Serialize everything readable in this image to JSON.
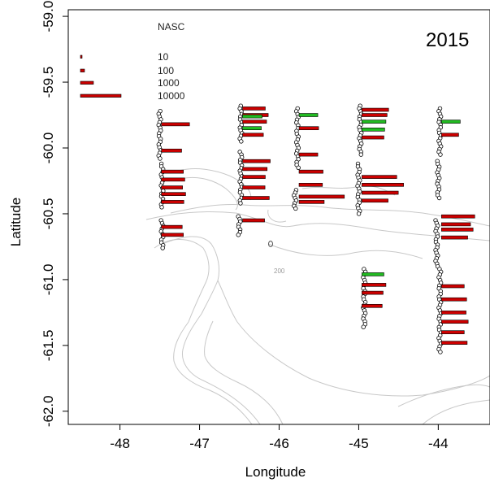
{
  "chart_data": {
    "type": "scatter",
    "title": "2015",
    "xlabel": "Longitude",
    "ylabel": "Latitude",
    "xlim": [
      -48.65,
      -43.35
    ],
    "ylim": [
      -62.1,
      -58.95
    ],
    "x_ticks": [
      -48,
      -47,
      -46,
      -45,
      -44
    ],
    "y_ticks": [
      -59.0,
      -59.5,
      -60.0,
      -60.5,
      -61.0,
      -61.5,
      -62.0
    ],
    "x_tick_labels": [
      "-48",
      "-47",
      "-46",
      "-45",
      "-44"
    ],
    "y_tick_labels": [
      "-59.0",
      "-59.5",
      "-60.0",
      "-60.5",
      "-61.0",
      "-61.5",
      "-62.0"
    ],
    "grid": false,
    "contour_label": "200",
    "legend": {
      "title": "NASC",
      "position": "top-left",
      "entries": [
        {
          "label": "10",
          "value": 10
        },
        {
          "label": "100",
          "value": 100
        },
        {
          "label": "1000",
          "value": 1000
        },
        {
          "label": "10000",
          "value": 10000
        }
      ]
    },
    "colors": {
      "high": "#cc0000",
      "low": "#22bb22",
      "point_outline": "#000000",
      "contour": "#c8c8c8",
      "frame": "#000000"
    },
    "transects": [
      {
        "name": "-47.5",
        "segments": [
          {
            "lat_start": -59.72,
            "lat_end": -60.08,
            "lon": -47.5
          },
          {
            "lat_start": -60.12,
            "lat_end": -60.45,
            "lon": -47.47
          },
          {
            "lat_start": -60.55,
            "lat_end": -60.76,
            "lon": -47.47
          }
        ],
        "bars": [
          {
            "lat": -59.82,
            "value": 8000,
            "group": "high"
          },
          {
            "lat": -60.02,
            "value": 1500,
            "group": "high"
          },
          {
            "lat": -60.18,
            "value": 2500,
            "group": "high"
          },
          {
            "lat": -60.24,
            "value": 3500,
            "group": "high"
          },
          {
            "lat": -60.3,
            "value": 2000,
            "group": "high"
          },
          {
            "lat": -60.35,
            "value": 4200,
            "group": "high"
          },
          {
            "lat": -60.41,
            "value": 2800,
            "group": "high"
          },
          {
            "lat": -60.6,
            "value": 1800,
            "group": "high"
          },
          {
            "lat": -60.66,
            "value": 2500,
            "group": "high"
          }
        ]
      },
      {
        "name": "-46.5",
        "segments": [
          {
            "lat_start": -59.68,
            "lat_end": -59.95,
            "lon": -46.48
          },
          {
            "lat_start": -60.03,
            "lat_end": -60.42,
            "lon": -46.48
          },
          {
            "lat_start": -60.52,
            "lat_end": -60.66,
            "lon": -46.5
          }
        ],
        "bars": [
          {
            "lat": -59.7,
            "value": 3000,
            "group": "high"
          },
          {
            "lat": -59.75,
            "value": 5500,
            "group": "high"
          },
          {
            "lat": -59.8,
            "value": 4000,
            "group": "high"
          },
          {
            "lat": -59.76,
            "value": 1200,
            "group": "low"
          },
          {
            "lat": -59.85,
            "value": 900,
            "group": "low"
          },
          {
            "lat": -59.9,
            "value": 1800,
            "group": "high"
          },
          {
            "lat": -60.1,
            "value": 7500,
            "group": "high"
          },
          {
            "lat": -60.16,
            "value": 4500,
            "group": "high"
          },
          {
            "lat": -60.22,
            "value": 3000,
            "group": "high"
          },
          {
            "lat": -60.3,
            "value": 2800,
            "group": "high"
          },
          {
            "lat": -60.38,
            "value": 6500,
            "group": "high"
          },
          {
            "lat": -60.55,
            "value": 2500,
            "group": "high"
          }
        ]
      },
      {
        "name": "-45.8",
        "segments": [
          {
            "lat_start": -59.7,
            "lat_end": -60.15,
            "lon": -45.77
          },
          {
            "lat_start": -60.32,
            "lat_end": -60.46,
            "lon": -45.8
          }
        ],
        "bars": [
          {
            "lat": -59.75,
            "value": 900,
            "group": "low"
          },
          {
            "lat": -59.85,
            "value": 1200,
            "group": "high"
          },
          {
            "lat": -60.05,
            "value": 900,
            "group": "high"
          },
          {
            "lat": -60.18,
            "value": 4000,
            "group": "high"
          },
          {
            "lat": -60.28,
            "value": 3500,
            "group": "high"
          },
          {
            "lat": -60.37,
            "value": 30000,
            "group": "high"
          },
          {
            "lat": -60.41,
            "value": 5000,
            "group": "high"
          }
        ]
      },
      {
        "name": "-45.0",
        "segments": [
          {
            "lat_start": -59.68,
            "lat_end": -60.05,
            "lon": -44.98
          },
          {
            "lat_start": -60.12,
            "lat_end": -60.5,
            "lon": -45.0
          },
          {
            "lat_start": -60.92,
            "lat_end": -61.36,
            "lon": -44.93
          }
        ],
        "bars": [
          {
            "lat": -59.71,
            "value": 6500,
            "group": "high"
          },
          {
            "lat": -59.75,
            "value": 5000,
            "group": "high"
          },
          {
            "lat": -59.8,
            "value": 4000,
            "group": "low"
          },
          {
            "lat": -59.86,
            "value": 3000,
            "group": "low"
          },
          {
            "lat": -59.92,
            "value": 2500,
            "group": "high"
          },
          {
            "lat": -60.22,
            "value": 16000,
            "group": "high"
          },
          {
            "lat": -60.28,
            "value": 25000,
            "group": "high"
          },
          {
            "lat": -60.34,
            "value": 18000,
            "group": "high"
          },
          {
            "lat": -60.4,
            "value": 6000,
            "group": "high"
          },
          {
            "lat": -60.96,
            "value": 2500,
            "group": "low"
          },
          {
            "lat": -61.04,
            "value": 4000,
            "group": "high"
          },
          {
            "lat": -61.1,
            "value": 2000,
            "group": "high"
          },
          {
            "lat": -61.2,
            "value": 1500,
            "group": "high"
          }
        ]
      },
      {
        "name": "-44.0",
        "segments": [
          {
            "lat_start": -59.7,
            "lat_end": -60.05,
            "lon": -43.98
          },
          {
            "lat_start": -60.1,
            "lat_end": -60.38,
            "lon": -44.0
          },
          {
            "lat_start": -60.55,
            "lat_end": -60.9,
            "lon": -44.02
          },
          {
            "lat_start": -60.92,
            "lat_end": -61.55,
            "lon": -43.98
          }
        ],
        "bars": [
          {
            "lat": -59.8,
            "value": 900,
            "group": "low"
          },
          {
            "lat": -59.9,
            "value": 500,
            "group": "high"
          },
          {
            "lat": -60.52,
            "value": 14000,
            "group": "high"
          },
          {
            "lat": -60.58,
            "value": 9000,
            "group": "high"
          },
          {
            "lat": -60.62,
            "value": 12000,
            "group": "high"
          },
          {
            "lat": -60.68,
            "value": 6000,
            "group": "high"
          },
          {
            "lat": -61.05,
            "value": 3000,
            "group": "high"
          },
          {
            "lat": -61.15,
            "value": 5000,
            "group": "high"
          },
          {
            "lat": -61.25,
            "value": 4500,
            "group": "high"
          },
          {
            "lat": -61.32,
            "value": 6500,
            "group": "high"
          },
          {
            "lat": -61.4,
            "value": 3000,
            "group": "high"
          },
          {
            "lat": -61.48,
            "value": 5500,
            "group": "high"
          }
        ]
      }
    ]
  }
}
